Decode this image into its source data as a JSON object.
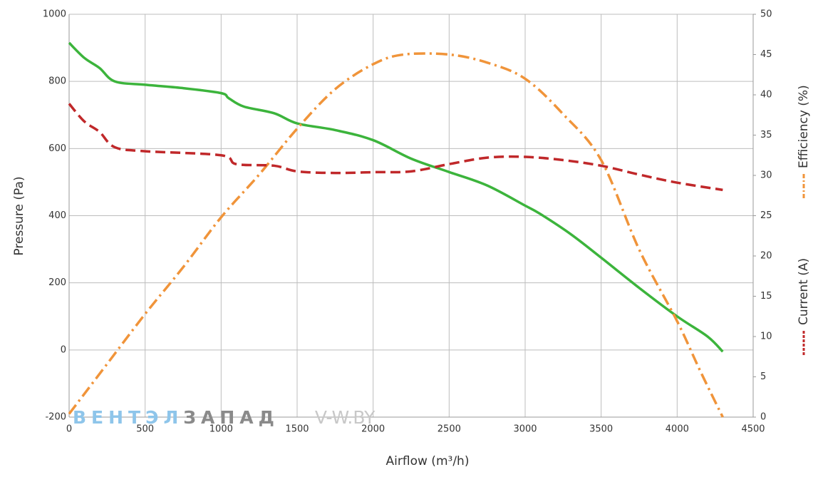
{
  "chart_data": {
    "type": "line",
    "x_label": "Airflow (m³/h)",
    "y_label": "Pressure (Pa)",
    "xlim": [
      0,
      4500
    ],
    "xticks": [
      0,
      500,
      1000,
      1500,
      2000,
      2500,
      3000,
      3500,
      4000,
      4500
    ],
    "ylim": [
      -200,
      1000
    ],
    "yticks": [
      -200,
      0,
      200,
      400,
      600,
      800,
      1000
    ],
    "y2lim": [
      0,
      50
    ],
    "y2ticks": [
      0,
      5,
      10,
      15,
      20,
      25,
      30,
      35,
      40,
      45,
      50
    ],
    "grid": true,
    "watermark": [
      "ВЕНТЭЛ",
      "ЗАПАД",
      "V-W.BY"
    ],
    "series": [
      {
        "name": "Pressure (Pa)",
        "color": "#3cb43c",
        "dash": "solid",
        "x": [
          0,
          100,
          200,
          300,
          500,
          750,
          1000,
          1050,
          1150,
          1350,
          1500,
          1750,
          2000,
          2250,
          2500,
          2750,
          3000,
          3100,
          3300,
          3500,
          3750,
          4000,
          4200,
          4300
        ],
        "values": [
          915,
          870,
          840,
          800,
          790,
          780,
          765,
          750,
          725,
          705,
          675,
          655,
          625,
          570,
          530,
          490,
          430,
          405,
          345,
          275,
          185,
          100,
          40,
          -5
        ]
      },
      {
        "name": "Efficiency (%)",
        "color": "#f0943a",
        "dash": "dashdot",
        "axis": "y2",
        "x": [
          0,
          250,
          500,
          750,
          1000,
          1250,
          1500,
          1750,
          2000,
          2200,
          2500,
          2750,
          3000,
          3250,
          3500,
          3750,
          4000,
          4150,
          4300
        ],
        "values": [
          0.4,
          6.6,
          12.8,
          18.6,
          24.8,
          30.1,
          35.8,
          40.7,
          43.8,
          45,
          45,
          44,
          42,
          37.6,
          31.9,
          20.8,
          11.9,
          5.8,
          0
        ]
      },
      {
        "name": "Current (A)",
        "color": "#c0282a",
        "dash": "dashed",
        "axis": "y2",
        "x": [
          0,
          100,
          200,
          300,
          500,
          1000,
          1100,
          1350,
          1500,
          1750,
          2000,
          2250,
          2500,
          2750,
          3000,
          3250,
          3500,
          3750,
          4000,
          4300
        ],
        "values": [
          38.9,
          36.7,
          35.4,
          33.5,
          33,
          32.5,
          31.4,
          31.2,
          30.5,
          30.3,
          30.4,
          30.5,
          31.4,
          32.2,
          32.3,
          31.9,
          31.2,
          30.1,
          29.1,
          28.2
        ]
      }
    ]
  }
}
